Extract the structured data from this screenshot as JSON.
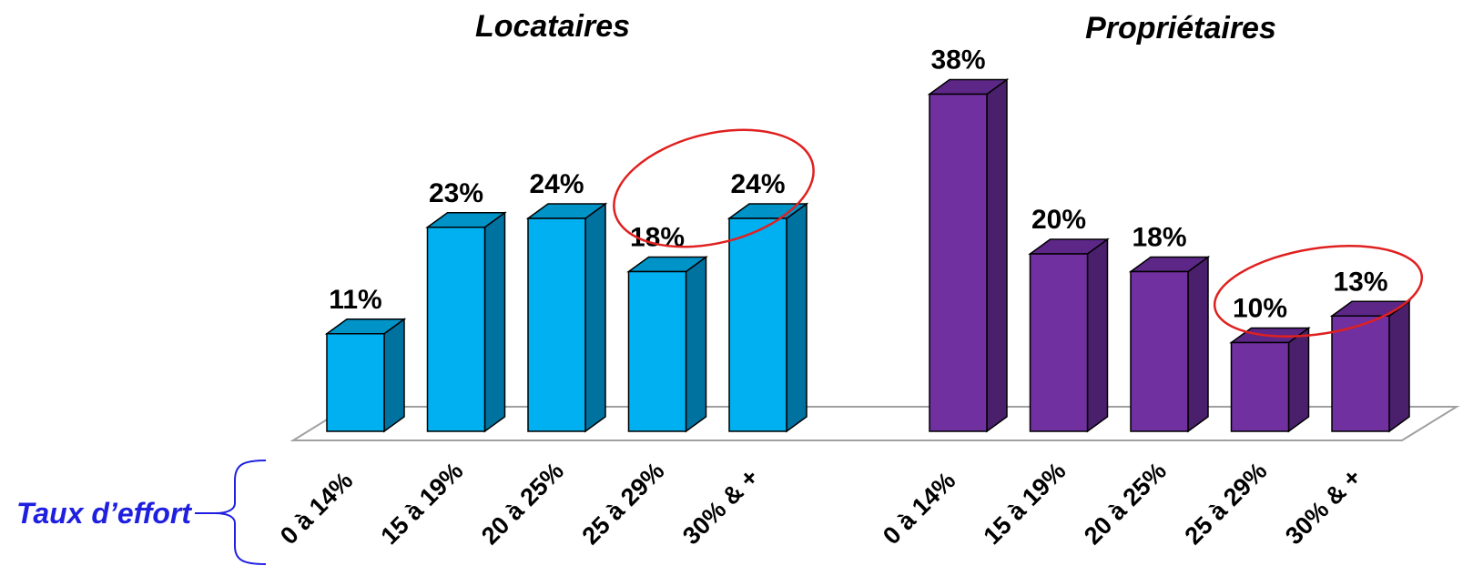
{
  "chart_data": [
    {
      "type": "bar",
      "title": "Locataires",
      "categories": [
        "0 à 14%",
        "15 à 19%",
        "20 à 25%",
        "25 à 29%",
        "30% & +"
      ],
      "values": [
        11,
        23,
        24,
        18,
        24
      ],
      "value_labels": [
        "11%",
        "23%",
        "24%",
        "18%",
        "24%"
      ],
      "colors": {
        "front": "#00b0f0",
        "side": "#0072a0",
        "top": "#0093c8"
      },
      "ylim": [
        0,
        40
      ],
      "grid": false,
      "highlighted_categories": [
        "25 à 29%",
        "30% & +"
      ]
    },
    {
      "type": "bar",
      "title": "Propriétaires",
      "categories": [
        "0 à 14%",
        "15 à 19%",
        "20 à 25%",
        "25 à 29%",
        "30% & +"
      ],
      "values": [
        38,
        20,
        18,
        10,
        13
      ],
      "value_labels": [
        "38%",
        "20%",
        "18%",
        "10%",
        "13%"
      ],
      "colors": {
        "front": "#7030a0",
        "side": "#4a1f6c",
        "top": "#5c2786"
      },
      "ylim": [
        0,
        40
      ],
      "grid": false,
      "highlighted_categories": [
        "25 à 29%",
        "30% & +"
      ]
    }
  ],
  "axis_label": "Taux d’effort",
  "colors": {
    "highlight_ellipse": "#e02020",
    "axis_label": "#1f1fe0",
    "brace": "#1f1fe0",
    "floor": "#a0a0a0"
  }
}
